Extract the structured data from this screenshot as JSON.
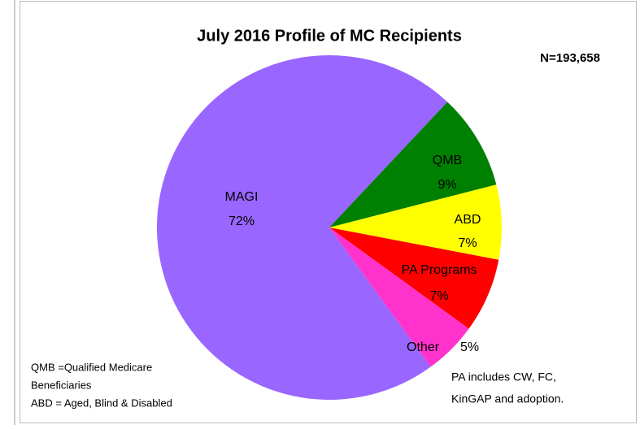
{
  "chart_data": {
    "type": "pie",
    "title": "July 2016 Profile of MC Recipients",
    "subtitle": "N=193,658",
    "categories": [
      "MAGI",
      "QMB",
      "ABD",
      "PA Programs",
      "Other"
    ],
    "values": [
      72,
      9,
      7,
      7,
      5
    ],
    "value_labels": [
      "72%",
      "9%",
      "7%",
      "7%",
      "5%"
    ],
    "colors": [
      "#9966ff",
      "#008000",
      "#ffff00",
      "#ff0000",
      "#ff33cc"
    ],
    "annotations": [
      "QMB =Qualified Medicare",
      "Beneficiaries",
      "ABD = Aged, Blind & Disabled",
      "PA includes CW, FC,",
      "KinGAP  and adoption."
    ]
  }
}
